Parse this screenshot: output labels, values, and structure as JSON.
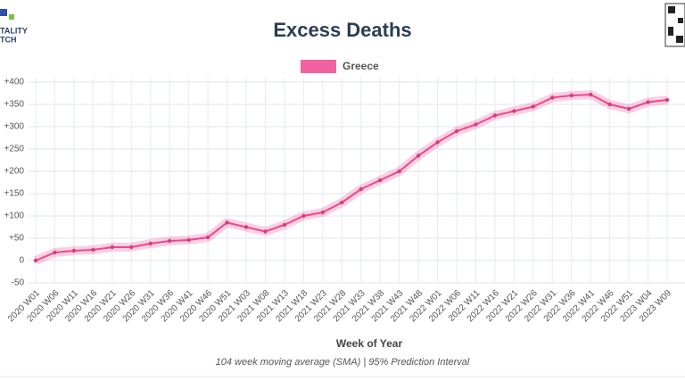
{
  "logo": {
    "lines": [
      "TALITY",
      "TCH"
    ]
  },
  "chart_data": {
    "type": "line",
    "title": "Excess Deaths",
    "x_label": "Week of Year",
    "subtitle": "104 week moving average (SMA) | 95% Prediction Interval",
    "categories": [
      "2020 W01",
      "2020 W06",
      "2020 W11",
      "2020 W16",
      "2020 W21",
      "2020 W26",
      "2020 W31",
      "2020 W36",
      "2020 W41",
      "2020 W46",
      "2020 W51",
      "2021 W03",
      "2021 W08",
      "2021 W13",
      "2021 W18",
      "2021 W23",
      "2021 W28",
      "2021 W33",
      "2021 W38",
      "2021 W43",
      "2021 W48",
      "2022 W01",
      "2022 W06",
      "2022 W11",
      "2022 W16",
      "2022 W21",
      "2022 W26",
      "2022 W31",
      "2022 W36",
      "2022 W41",
      "2022 W46",
      "2022 W51",
      "2023 W04",
      "2023 W09"
    ],
    "series": [
      {
        "name": "Greece",
        "color": "#f0468f",
        "values": [
          0,
          18,
          22,
          24,
          30,
          30,
          38,
          44,
          46,
          52,
          85,
          75,
          65,
          80,
          100,
          108,
          130,
          160,
          180,
          200,
          235,
          265,
          290,
          305,
          325,
          335,
          345,
          365,
          370,
          372,
          350,
          340,
          355,
          360
        ]
      }
    ],
    "ylim": [
      -50,
      400
    ],
    "yticks": [
      -50,
      0,
      {
        "value": 50,
        "label": "+50"
      },
      {
        "value": 100,
        "label": "+100"
      },
      {
        "value": 150,
        "label": "+150"
      },
      {
        "value": 200,
        "label": "+200"
      },
      {
        "value": 250,
        "label": "+250"
      },
      {
        "value": 300,
        "label": "+300"
      },
      {
        "value": 350,
        "label": "+350"
      },
      {
        "value": 400,
        "label": "+400"
      }
    ],
    "grid": true
  }
}
